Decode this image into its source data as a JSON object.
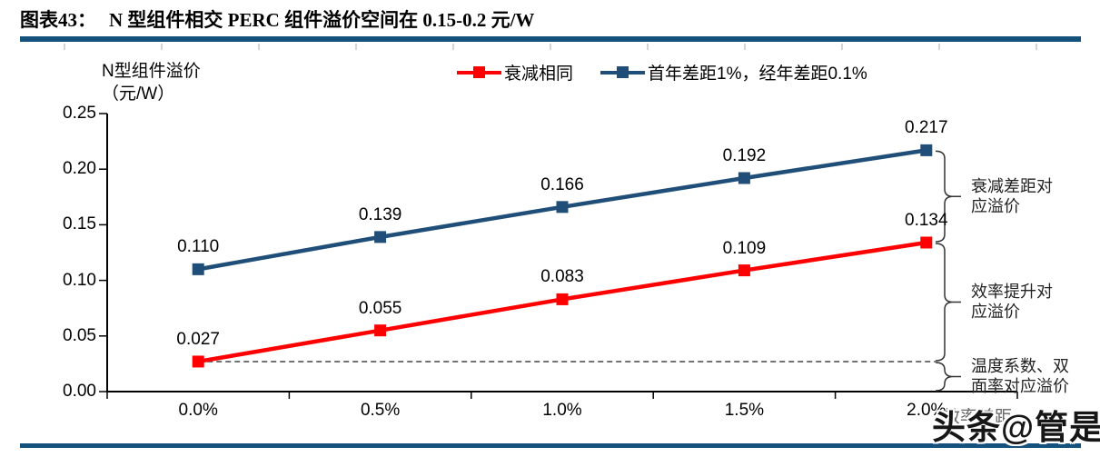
{
  "header": {
    "label": "图表43：",
    "title": "N 型组件相交 PERC 组件溢价空间在 0.15-0.2 元/W"
  },
  "watermark": "头条@管是",
  "colors": {
    "accent_rule": "#14527D",
    "series_red": "#FF0000",
    "series_blue": "#1F4E79"
  },
  "chart_data": {
    "type": "line",
    "title": "N 型组件相交 PERC 组件溢价空间在 0.15-0.2 元/W",
    "categories": [
      "0.0%",
      "0.5%",
      "1.0%",
      "1.5%",
      "2.0%"
    ],
    "x_axis": {
      "title": "效率差距"
    },
    "y_axis": {
      "title_lines": [
        "N型组件溢价",
        "（元/W）"
      ],
      "min": 0,
      "max": 0.25,
      "ticks": [
        "0.25",
        "0.20",
        "0.15",
        "0.10",
        "0.05",
        "0.00"
      ]
    },
    "grid": false,
    "legend_position": "top",
    "series": [
      {
        "name": "衰减相同",
        "color": "#FF0000",
        "values": [
          0.027,
          0.055,
          0.083,
          0.109,
          0.134
        ],
        "labels": [
          "0.027",
          "0.055",
          "0.083",
          "0.109",
          "0.134"
        ]
      },
      {
        "name": "首年差距1%，经年差距0.1%",
        "color": "#1F4E79",
        "values": [
          0.11,
          0.139,
          0.166,
          0.192,
          0.217
        ],
        "labels": [
          "0.110",
          "0.139",
          "0.166",
          "0.192",
          "0.217"
        ]
      }
    ],
    "reference_line": {
      "value": 0.027,
      "style": "dashed"
    },
    "annotations": [
      {
        "lines": [
          "衰减差距对",
          "应溢价"
        ],
        "from": 0.217,
        "to": 0.134
      },
      {
        "lines": [
          "效率提升对",
          "应溢价"
        ],
        "from": 0.134,
        "to": 0.027
      },
      {
        "lines": [
          "温度系数、双",
          "面率对应溢价"
        ],
        "from": 0.027,
        "to": 0
      }
    ]
  }
}
